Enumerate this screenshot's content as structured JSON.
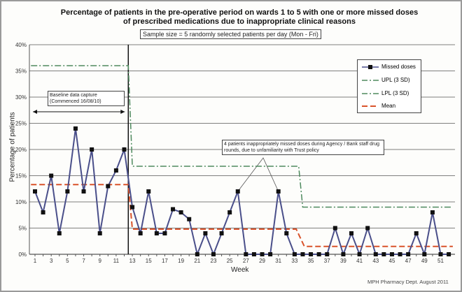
{
  "chart_data": {
    "type": "line",
    "title": "Percentage of patients in the pre-operative period on wards 1 to 5 with one or more missed doses of prescribed medications due to inappropriate clinical reasons",
    "subtitle": "Sample size = 5 randomly selected patients per day (Mon - Fri)",
    "xlabel": "Week",
    "ylabel": "Percentage of patients",
    "ylim": [
      0,
      40
    ],
    "yticks": [
      "0%",
      "5%",
      "10%",
      "15%",
      "20%",
      "25%",
      "30%",
      "35%",
      "40%"
    ],
    "xticks": [
      "1",
      "3",
      "5",
      "7",
      "9",
      "11",
      "13",
      "15",
      "17",
      "19",
      "21",
      "23",
      "25",
      "27",
      "29",
      "31",
      "33",
      "35",
      "37",
      "39",
      "41",
      "43",
      "45",
      "47",
      "49",
      "51"
    ],
    "x": [
      1,
      2,
      3,
      4,
      5,
      6,
      7,
      8,
      9,
      10,
      11,
      12,
      13,
      14,
      15,
      16,
      17,
      18,
      19,
      20,
      21,
      22,
      23,
      24,
      25,
      26,
      27,
      28,
      29,
      30,
      31,
      32,
      33,
      34,
      35,
      36,
      37,
      38,
      39,
      40,
      41,
      42,
      43,
      44,
      45,
      46,
      47,
      48,
      49,
      50,
      51,
      52
    ],
    "series": [
      {
        "name": "Missed doses",
        "color": "#4a4f8a",
        "values": [
          12,
          8,
          15,
          4,
          12,
          24,
          12,
          20,
          4,
          13,
          16,
          20,
          9,
          4,
          12,
          4,
          4,
          8.6,
          8,
          6.7,
          0,
          4,
          0,
          4,
          8,
          12,
          0,
          0,
          0,
          0,
          12,
          4,
          0,
          0,
          0,
          0,
          0,
          5,
          0,
          4,
          0,
          5,
          0,
          0,
          0,
          0,
          0,
          4,
          0,
          8,
          0,
          0
        ]
      },
      {
        "name": "UPL (3 SD)",
        "color": "#4e8a5e",
        "segments": [
          {
            "from": 0.5,
            "to": 12.5,
            "value": 36
          },
          {
            "from": 13,
            "to": 33.5,
            "value": 16.8
          },
          {
            "from": 34,
            "to": 52.5,
            "value": 9
          }
        ]
      },
      {
        "name": "LPL (3 SD)",
        "color": "#4e8a5e",
        "segments": []
      },
      {
        "name": "Mean",
        "color": "#d9532b",
        "segments": [
          {
            "from": 0.5,
            "to": 12.5,
            "value": 13.3
          },
          {
            "from": 13,
            "to": 33.2,
            "value": 4.8
          },
          {
            "from": 34.2,
            "to": 52.5,
            "value": 1.5
          }
        ]
      }
    ],
    "phase_break_week": 12.5,
    "grid": true,
    "legend_position": "top-right",
    "annotations": {
      "baseline": "Baseline data capture (Commenced 16/08/10)",
      "agency": "4 patients inappropriately missed doses during Agency / Bank staff drug rounds, due to unfamiliarity with Trust policy"
    },
    "footer": "MPH Pharmacy Dept. August 2011"
  }
}
